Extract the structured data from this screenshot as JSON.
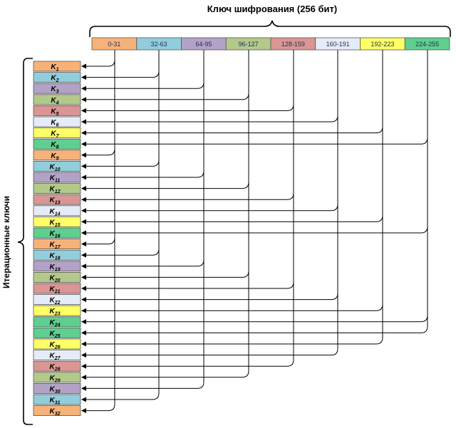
{
  "key_title": "Ключ шифрования (256 бит)",
  "side_label": "Итерационные ключи",
  "segments": [
    {
      "label": "0-31",
      "color": "#f7b27a"
    },
    {
      "label": "32-63",
      "color": "#92cddc"
    },
    {
      "label": "64-95",
      "color": "#b3a2c7"
    },
    {
      "label": "96-127",
      "color": "#b3c98a"
    },
    {
      "label": "128-159",
      "color": "#d99694"
    },
    {
      "label": "160-191",
      "color": "#e6ecf7"
    },
    {
      "label": "192-223",
      "color": "#ffff66"
    },
    {
      "label": "224-255",
      "color": "#5fcf8f"
    }
  ],
  "round_keys": [
    {
      "base": "K",
      "sub": "1"
    },
    {
      "base": "K",
      "sub": "2"
    },
    {
      "base": "K",
      "sub": "3"
    },
    {
      "base": "K",
      "sub": "4"
    },
    {
      "base": "K",
      "sub": "5"
    },
    {
      "base": "K",
      "sub": "6"
    },
    {
      "base": "K",
      "sub": "7"
    },
    {
      "base": "K",
      "sub": "8"
    },
    {
      "base": "K",
      "sub": "9"
    },
    {
      "base": "K",
      "sub": "10"
    },
    {
      "base": "K",
      "sub": "11"
    },
    {
      "base": "K",
      "sub": "12"
    },
    {
      "base": "K",
      "sub": "13"
    },
    {
      "base": "K",
      "sub": "14"
    },
    {
      "base": "K",
      "sub": "15"
    },
    {
      "base": "K",
      "sub": "16"
    },
    {
      "base": "K",
      "sub": "17"
    },
    {
      "base": "K",
      "sub": "18"
    },
    {
      "base": "K",
      "sub": "19"
    },
    {
      "base": "K",
      "sub": "20"
    },
    {
      "base": "K",
      "sub": "21"
    },
    {
      "base": "K",
      "sub": "22"
    },
    {
      "base": "K",
      "sub": "23"
    },
    {
      "base": "K",
      "sub": "24"
    },
    {
      "base": "K",
      "sub": "25"
    },
    {
      "base": "K",
      "sub": "26"
    },
    {
      "base": "K",
      "sub": "27"
    },
    {
      "base": "K",
      "sub": "28"
    },
    {
      "base": "K",
      "sub": "29"
    },
    {
      "base": "K",
      "sub": "30"
    },
    {
      "base": "K",
      "sub": "31"
    },
    {
      "base": "K",
      "sub": "32"
    }
  ],
  "round_key_segment_order": [
    0,
    1,
    2,
    3,
    4,
    5,
    6,
    7,
    0,
    1,
    2,
    3,
    4,
    5,
    6,
    7,
    0,
    1,
    2,
    3,
    4,
    5,
    6,
    7,
    7,
    6,
    5,
    4,
    3,
    2,
    1,
    0
  ]
}
